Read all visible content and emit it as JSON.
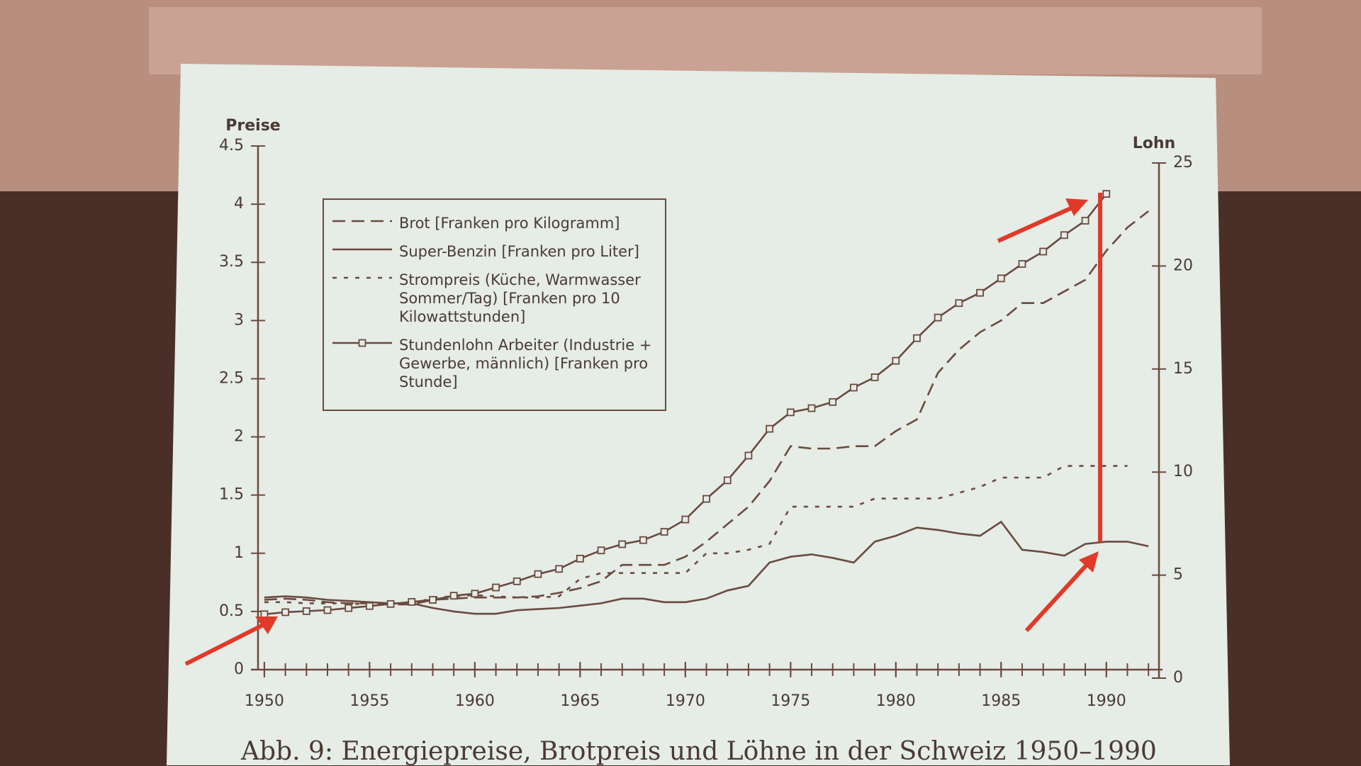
{
  "chart_data": {
    "type": "line",
    "y_label": "Preise",
    "y2_label": "Lohn",
    "caption": "Abb. 9: Energiepreise, Brotpreis und Löhne in der Schweiz 1950–1990",
    "x": [
      1950,
      1951,
      1952,
      1953,
      1954,
      1955,
      1956,
      1957,
      1958,
      1959,
      1960,
      1961,
      1962,
      1963,
      1964,
      1965,
      1966,
      1967,
      1968,
      1969,
      1970,
      1971,
      1972,
      1973,
      1974,
      1975,
      1976,
      1977,
      1978,
      1979,
      1980,
      1981,
      1982,
      1983,
      1984,
      1985,
      1986,
      1987,
      1988,
      1989,
      1990,
      1991,
      1992
    ],
    "xlim": [
      1949.7,
      1992.5
    ],
    "xticks": [
      1950,
      1955,
      1960,
      1965,
      1970,
      1975,
      1980,
      1985,
      1990
    ],
    "ylim": [
      0,
      4.5
    ],
    "yticks": [
      0,
      0.5,
      1,
      1.5,
      2,
      2.5,
      3,
      3.5,
      4,
      4.5
    ],
    "y2lim": [
      0,
      25
    ],
    "y2ticks": [
      0,
      5,
      10,
      15,
      20,
      25
    ],
    "series": [
      {
        "name": "Brot [Franken pro Kilogramm]",
        "color": "#6b4a3f",
        "style": "dashed",
        "values": [
          0.6,
          0.61,
          0.6,
          0.58,
          0.57,
          0.57,
          0.56,
          0.56,
          0.6,
          0.61,
          0.62,
          0.62,
          0.62,
          0.63,
          0.66,
          0.7,
          0.76,
          0.9,
          0.9,
          0.9,
          0.97,
          1.1,
          1.25,
          1.4,
          1.62,
          1.92,
          1.9,
          1.9,
          1.92,
          1.92,
          2.05,
          2.15,
          2.55,
          2.75,
          2.9,
          3.0,
          3.15,
          3.15,
          3.25,
          3.35,
          3.6,
          3.8,
          3.94
        ]
      },
      {
        "name": "Super-Benzin [Franken pro Liter]",
        "color": "#6b4a3f",
        "style": "solid",
        "values": [
          0.62,
          0.63,
          0.62,
          0.6,
          0.59,
          0.58,
          0.57,
          0.57,
          0.53,
          0.5,
          0.48,
          0.48,
          0.51,
          0.52,
          0.53,
          0.55,
          0.57,
          0.61,
          0.61,
          0.58,
          0.58,
          0.61,
          0.68,
          0.72,
          0.92,
          0.97,
          0.99,
          0.96,
          0.92,
          1.1,
          1.15,
          1.22,
          1.2,
          1.17,
          1.15,
          1.27,
          1.03,
          1.01,
          0.98,
          1.08,
          1.1,
          1.1,
          1.06
        ]
      },
      {
        "name": "Strompreis (Küche, Warmwasser Sommer/Tag) [Franken pro 10 Kilowattstunden]",
        "color": "#6b4a3f",
        "style": "dotted",
        "values": [
          0.58,
          0.58,
          0.57,
          0.57,
          0.57,
          0.56,
          0.56,
          0.56,
          0.62,
          0.63,
          0.64,
          0.63,
          0.62,
          0.62,
          0.63,
          0.78,
          0.83,
          0.83,
          0.83,
          0.83,
          0.83,
          1.0,
          1.0,
          1.03,
          1.08,
          1.4,
          1.4,
          1.4,
          1.4,
          1.47,
          1.47,
          1.47,
          1.47,
          1.52,
          1.57,
          1.65,
          1.65,
          1.65,
          1.75,
          1.75,
          1.75,
          1.75,
          null
        ]
      },
      {
        "name": "Stundenlohn Arbeiter (Industrie + Gewerbe, männlich) [Franken pro Stunde]",
        "color": "#6b4a3f",
        "style": "solid",
        "marker": "square",
        "axis": "y2",
        "values": [
          3.1,
          3.2,
          3.25,
          3.3,
          3.4,
          3.5,
          3.6,
          3.7,
          3.8,
          4.0,
          4.1,
          4.4,
          4.7,
          5.05,
          5.3,
          5.8,
          6.2,
          6.5,
          6.7,
          7.1,
          7.7,
          8.7,
          9.6,
          10.8,
          12.1,
          12.9,
          13.1,
          13.4,
          14.1,
          14.6,
          15.4,
          16.5,
          17.5,
          18.2,
          18.7,
          19.4,
          20.1,
          20.7,
          21.5,
          22.2,
          23.5,
          null,
          null
        ]
      }
    ]
  }
}
